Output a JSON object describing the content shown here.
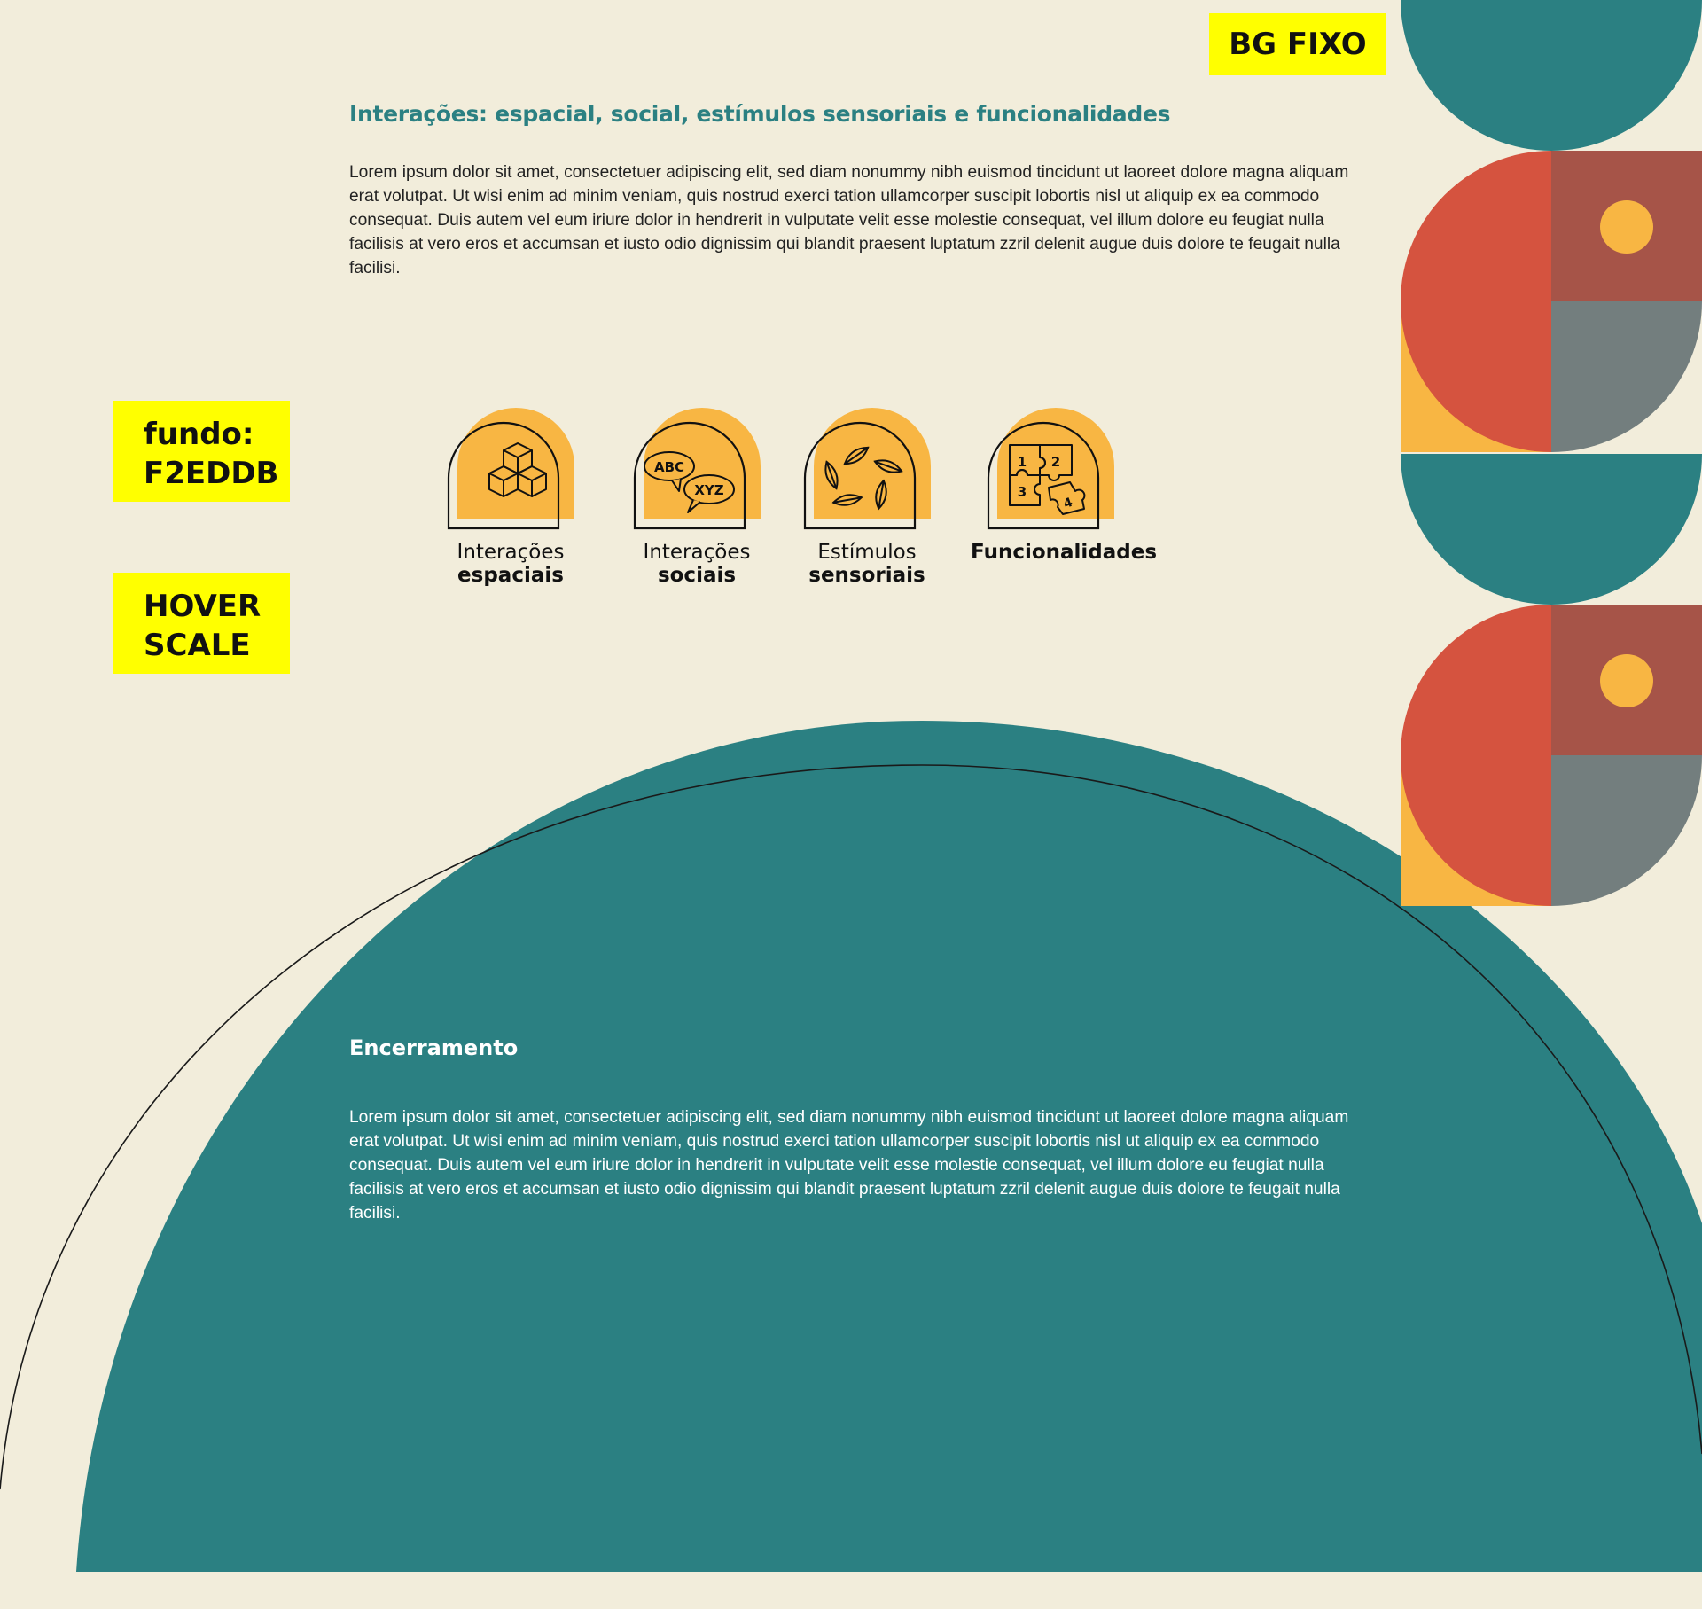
{
  "annotations": {
    "bg_fixo": "BG FIXO",
    "fundo_line1": "fundo:",
    "fundo_line2": "F2EDDB",
    "hover_line1": "HOVER",
    "hover_line2": "SCALE"
  },
  "colors": {
    "background": "#F2EDDB",
    "teal": "#2B8082",
    "orange_red": "#D5533F",
    "brick": "#A65448",
    "gray": "#737E7E",
    "yellow": "#F8B643",
    "note_yellow": "#FFFF00"
  },
  "interactions": {
    "title": "Interações: espacial, social, estímulos sensoriais e funcionalidades",
    "body": "Lorem ipsum dolor sit amet, consectetuer adipiscing elit, sed diam nonummy nibh euismod tincidunt ut laoreet dolore magna aliquam erat volutpat. Ut wisi enim ad minim veniam, quis nostrud exerci tation ullamcorper suscipit lobortis nisl ut aliquip ex ea commodo consequat. Duis autem vel eum iriure dolor in hendrerit in vulputate velit esse molestie consequat, vel illum dolore eu feugiat nulla facilisis at vero eros et accumsan et iusto odio dignissim qui blandit praesent luptatum zzril delenit augue duis dolore te feugait nulla facilisi.",
    "cards": [
      {
        "icon": "cubes-icon",
        "line1": "Interações",
        "line2": "espaciais"
      },
      {
        "icon": "speech-bubbles-icon",
        "line1": "Interações",
        "line2": "sociais",
        "bubble1": "ABC",
        "bubble2": "XYZ"
      },
      {
        "icon": "leaves-icon",
        "line1": "Estímulos",
        "line2": "sensoriais"
      },
      {
        "icon": "puzzle-icon",
        "line1": "",
        "line2": "Funcionalidades",
        "n1": "1",
        "n2": "2",
        "n3": "3",
        "n4": "4"
      }
    ]
  },
  "closing": {
    "title": "Encerramento",
    "body": "Lorem ipsum dolor sit amet, consectetuer adipiscing elit, sed diam nonummy nibh euismod tincidunt ut laoreet dolore magna aliquam erat volutpat. Ut wisi enim ad minim veniam, quis nostrud exerci tation ullamcorper suscipit lobortis nisl ut aliquip ex ea commodo consequat. Duis autem vel eum iriure dolor in hendrerit in vulputate velit esse molestie consequat, vel illum dolore eu feugiat nulla facilisis at vero eros et accumsan et iusto odio dignissim qui blandit praesent luptatum zzril delenit augue duis dolore te feugait nulla facilisi."
  }
}
